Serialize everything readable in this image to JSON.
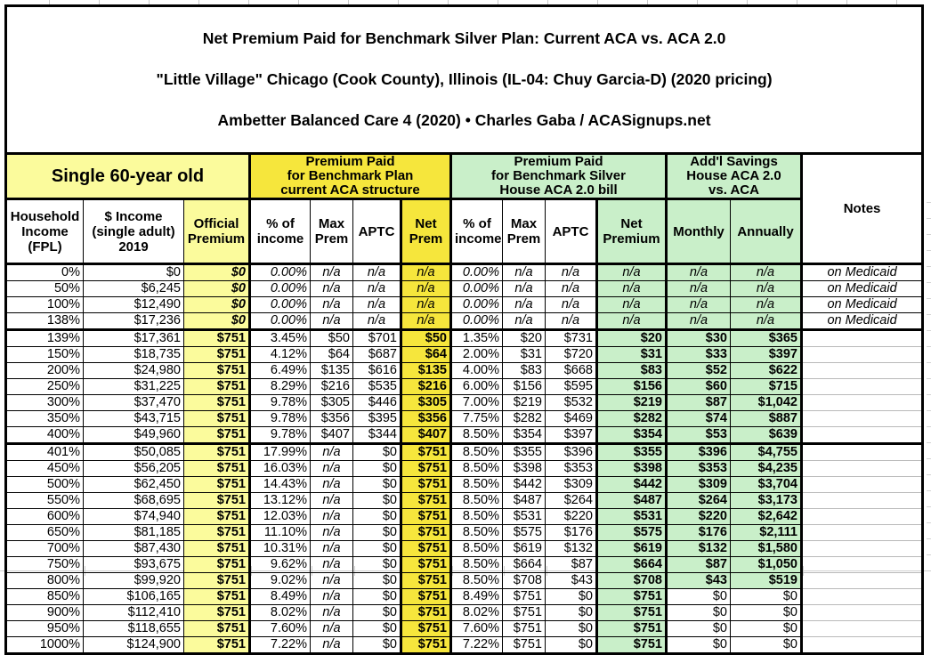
{
  "title": {
    "line1": "Net Premium Paid for Benchmark Silver Plan: Current ACA vs. ACA 2.0",
    "line2": "\"Little Village\" Chicago (Cook County), Illinois (IL-04: Chuy Garcia-D) (2020 pricing)",
    "line3": "Ambetter Balanced Care 4 (2020) • Charles Gaba / ACASignups.net"
  },
  "groups": {
    "single": "Single 60-year old",
    "current_aca": "Premium Paid\nfor Benchmark Plan\ncurrent ACA structure",
    "aca2": "Premium Paid\nfor Benchmark Silver\nHouse ACA 2.0 bill",
    "savings": "Add'l Savings\nHouse ACA 2.0\nvs. ACA",
    "notes": "Notes"
  },
  "columns": [
    "Household\nIncome\n(FPL)",
    "$ Income\n(single adult)\n2019",
    "Official\nPremium",
    "% of\nincome",
    "Max\nPrem",
    "APTC",
    "Net\nPrem",
    "% of\nincome",
    "Max\nPrem",
    "APTC",
    "Net\nPremium",
    "Monthly",
    "Annually"
  ],
  "colors": {
    "pale_yellow": "#FBFB9C",
    "bright_yellow": "#F6E63C",
    "light_green": "#C9EFC9",
    "table_border": "#000000",
    "faint_grid": "#C9C9C9"
  },
  "rows": [
    {
      "cells": [
        "0%",
        "$0",
        "$0",
        "0.00%",
        "n/a",
        "n/a",
        "n/a",
        "0.00%",
        "n/a",
        "n/a",
        "n/a",
        "n/a",
        "n/a",
        "on Medicaid"
      ],
      "medicaid": true,
      "group_end": false,
      "savings_plain": false
    },
    {
      "cells": [
        "50%",
        "$6,245",
        "$0",
        "0.00%",
        "n/a",
        "n/a",
        "n/a",
        "0.00%",
        "n/a",
        "n/a",
        "n/a",
        "n/a",
        "n/a",
        "on Medicaid"
      ],
      "medicaid": true,
      "group_end": false,
      "savings_plain": false
    },
    {
      "cells": [
        "100%",
        "$12,490",
        "$0",
        "0.00%",
        "n/a",
        "n/a",
        "n/a",
        "0.00%",
        "n/a",
        "n/a",
        "n/a",
        "n/a",
        "n/a",
        "on Medicaid"
      ],
      "medicaid": true,
      "group_end": false,
      "savings_plain": false
    },
    {
      "cells": [
        "138%",
        "$17,236",
        "$0",
        "0.00%",
        "n/a",
        "n/a",
        "n/a",
        "0.00%",
        "n/a",
        "n/a",
        "n/a",
        "n/a",
        "n/a",
        "on Medicaid"
      ],
      "medicaid": true,
      "group_end": true,
      "savings_plain": false
    },
    {
      "cells": [
        "139%",
        "$17,361",
        "$751",
        "3.45%",
        "$50",
        "$701",
        "$50",
        "1.35%",
        "$20",
        "$731",
        "$20",
        "$30",
        "$365",
        ""
      ],
      "medicaid": false,
      "group_end": false,
      "savings_plain": false
    },
    {
      "cells": [
        "150%",
        "$18,735",
        "$751",
        "4.12%",
        "$64",
        "$687",
        "$64",
        "2.00%",
        "$31",
        "$720",
        "$31",
        "$33",
        "$397",
        ""
      ],
      "medicaid": false,
      "group_end": false,
      "savings_plain": false
    },
    {
      "cells": [
        "200%",
        "$24,980",
        "$751",
        "6.49%",
        "$135",
        "$616",
        "$135",
        "4.00%",
        "$83",
        "$668",
        "$83",
        "$52",
        "$622",
        ""
      ],
      "medicaid": false,
      "group_end": false,
      "savings_plain": false
    },
    {
      "cells": [
        "250%",
        "$31,225",
        "$751",
        "8.29%",
        "$216",
        "$535",
        "$216",
        "6.00%",
        "$156",
        "$595",
        "$156",
        "$60",
        "$715",
        ""
      ],
      "medicaid": false,
      "group_end": false,
      "savings_plain": false
    },
    {
      "cells": [
        "300%",
        "$37,470",
        "$751",
        "9.78%",
        "$305",
        "$446",
        "$305",
        "7.00%",
        "$219",
        "$532",
        "$219",
        "$87",
        "$1,042",
        ""
      ],
      "medicaid": false,
      "group_end": false,
      "savings_plain": false
    },
    {
      "cells": [
        "350%",
        "$43,715",
        "$751",
        "9.78%",
        "$356",
        "$395",
        "$356",
        "7.75%",
        "$282",
        "$469",
        "$282",
        "$74",
        "$887",
        ""
      ],
      "medicaid": false,
      "group_end": false,
      "savings_plain": false
    },
    {
      "cells": [
        "400%",
        "$49,960",
        "$751",
        "9.78%",
        "$407",
        "$344",
        "$407",
        "8.50%",
        "$354",
        "$397",
        "$354",
        "$53",
        "$639",
        ""
      ],
      "medicaid": false,
      "group_end": true,
      "savings_plain": false
    },
    {
      "cells": [
        "401%",
        "$50,085",
        "$751",
        "17.99%",
        "n/a",
        "$0",
        "$751",
        "8.50%",
        "$355",
        "$396",
        "$355",
        "$396",
        "$4,755",
        ""
      ],
      "medicaid": false,
      "group_end": false,
      "savings_plain": false
    },
    {
      "cells": [
        "450%",
        "$56,205",
        "$751",
        "16.03%",
        "n/a",
        "$0",
        "$751",
        "8.50%",
        "$398",
        "$353",
        "$398",
        "$353",
        "$4,235",
        ""
      ],
      "medicaid": false,
      "group_end": false,
      "savings_plain": false
    },
    {
      "cells": [
        "500%",
        "$62,450",
        "$751",
        "14.43%",
        "n/a",
        "$0",
        "$751",
        "8.50%",
        "$442",
        "$309",
        "$442",
        "$309",
        "$3,704",
        ""
      ],
      "medicaid": false,
      "group_end": false,
      "savings_plain": false
    },
    {
      "cells": [
        "550%",
        "$68,695",
        "$751",
        "13.12%",
        "n/a",
        "$0",
        "$751",
        "8.50%",
        "$487",
        "$264",
        "$487",
        "$264",
        "$3,173",
        ""
      ],
      "medicaid": false,
      "group_end": false,
      "savings_plain": false
    },
    {
      "cells": [
        "600%",
        "$74,940",
        "$751",
        "12.03%",
        "n/a",
        "$0",
        "$751",
        "8.50%",
        "$531",
        "$220",
        "$531",
        "$220",
        "$2,642",
        ""
      ],
      "medicaid": false,
      "group_end": false,
      "savings_plain": false
    },
    {
      "cells": [
        "650%",
        "$81,185",
        "$751",
        "11.10%",
        "n/a",
        "$0",
        "$751",
        "8.50%",
        "$575",
        "$176",
        "$575",
        "$176",
        "$2,111",
        ""
      ],
      "medicaid": false,
      "group_end": false,
      "savings_plain": false
    },
    {
      "cells": [
        "700%",
        "$87,430",
        "$751",
        "10.31%",
        "n/a",
        "$0",
        "$751",
        "8.50%",
        "$619",
        "$132",
        "$619",
        "$132",
        "$1,580",
        ""
      ],
      "medicaid": false,
      "group_end": false,
      "savings_plain": false
    },
    {
      "cells": [
        "750%",
        "$93,675",
        "$751",
        "9.62%",
        "n/a",
        "$0",
        "$751",
        "8.50%",
        "$664",
        "$87",
        "$664",
        "$87",
        "$1,050",
        ""
      ],
      "medicaid": false,
      "group_end": false,
      "savings_plain": false
    },
    {
      "cells": [
        "800%",
        "$99,920",
        "$751",
        "9.02%",
        "n/a",
        "$0",
        "$751",
        "8.50%",
        "$708",
        "$43",
        "$708",
        "$43",
        "$519",
        ""
      ],
      "medicaid": false,
      "group_end": false,
      "savings_plain": false
    },
    {
      "cells": [
        "850%",
        "$106,165",
        "$751",
        "8.49%",
        "n/a",
        "$0",
        "$751",
        "8.49%",
        "$751",
        "$0",
        "$751",
        "$0",
        "$0",
        ""
      ],
      "medicaid": false,
      "group_end": false,
      "savings_plain": true
    },
    {
      "cells": [
        "900%",
        "$112,410",
        "$751",
        "8.02%",
        "n/a",
        "$0",
        "$751",
        "8.02%",
        "$751",
        "$0",
        "$751",
        "$0",
        "$0",
        ""
      ],
      "medicaid": false,
      "group_end": false,
      "savings_plain": true
    },
    {
      "cells": [
        "950%",
        "$118,655",
        "$751",
        "7.60%",
        "n/a",
        "$0",
        "$751",
        "7.60%",
        "$751",
        "$0",
        "$751",
        "$0",
        "$0",
        ""
      ],
      "medicaid": false,
      "group_end": false,
      "savings_plain": true
    },
    {
      "cells": [
        "1000%",
        "$124,900",
        "$751",
        "7.22%",
        "n/a",
        "$0",
        "$751",
        "7.22%",
        "$751",
        "$0",
        "$751",
        "$0",
        "$0",
        ""
      ],
      "medicaid": false,
      "group_end": false,
      "savings_plain": true
    }
  ]
}
